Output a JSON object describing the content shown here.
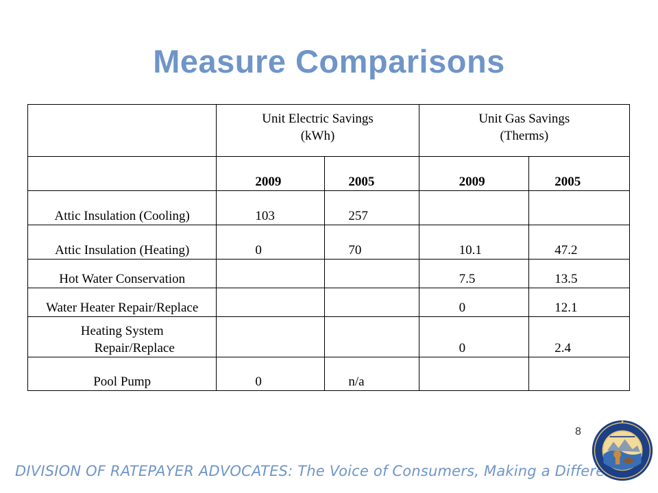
{
  "title": "Measure Comparisons",
  "table": {
    "header_electric": "Unit Electric Savings",
    "header_electric_unit": "(kWh)",
    "header_gas": "Unit Gas Savings",
    "header_gas_unit": "(Therms)",
    "years": [
      "2009",
      "2005",
      "2009",
      "2005"
    ],
    "rows": [
      {
        "measure": "Attic Insulation (Cooling)",
        "e2009": "103",
        "e2005": "257",
        "g2009": "",
        "g2005": ""
      },
      {
        "measure": "Attic Insulation (Heating)",
        "e2009": "0",
        "e2005": "70",
        "g2009": "10.1",
        "g2005": "47.2"
      },
      {
        "measure": "Hot Water Conservation",
        "e2009": "",
        "e2005": "",
        "g2009": "7.5",
        "g2005": "13.5"
      },
      {
        "measure": "Water Heater Repair/Replace",
        "e2009": "",
        "e2005": "",
        "g2009": "0",
        "g2005": "12.1"
      },
      {
        "measure_line1": "Heating System",
        "measure_line2": "Repair/Replace",
        "e2009": "",
        "e2005": "",
        "g2009": "0",
        "g2005": "2.4"
      },
      {
        "measure": "Pool Pump",
        "e2009": "0",
        "e2005": "n/a",
        "g2009": "",
        "g2005": ""
      }
    ]
  },
  "page_number": "8",
  "footer": "DIVISION OF RATEPAYER ADVOCATES: The Voice of Consumers, Making a Difference!",
  "seal": {
    "icon": "california-puc-seal-icon",
    "ring_text_top": "PUBLIC UTILITIES COMMISSION",
    "ring_text_bottom": "STATE OF CALIFORNIA",
    "motto": "EUREKA",
    "colors": {
      "ring": "#1d3f86",
      "inner": "#e9c46a"
    }
  },
  "colors": {
    "title": "#6f95c8",
    "footer": "#6f95c8"
  }
}
